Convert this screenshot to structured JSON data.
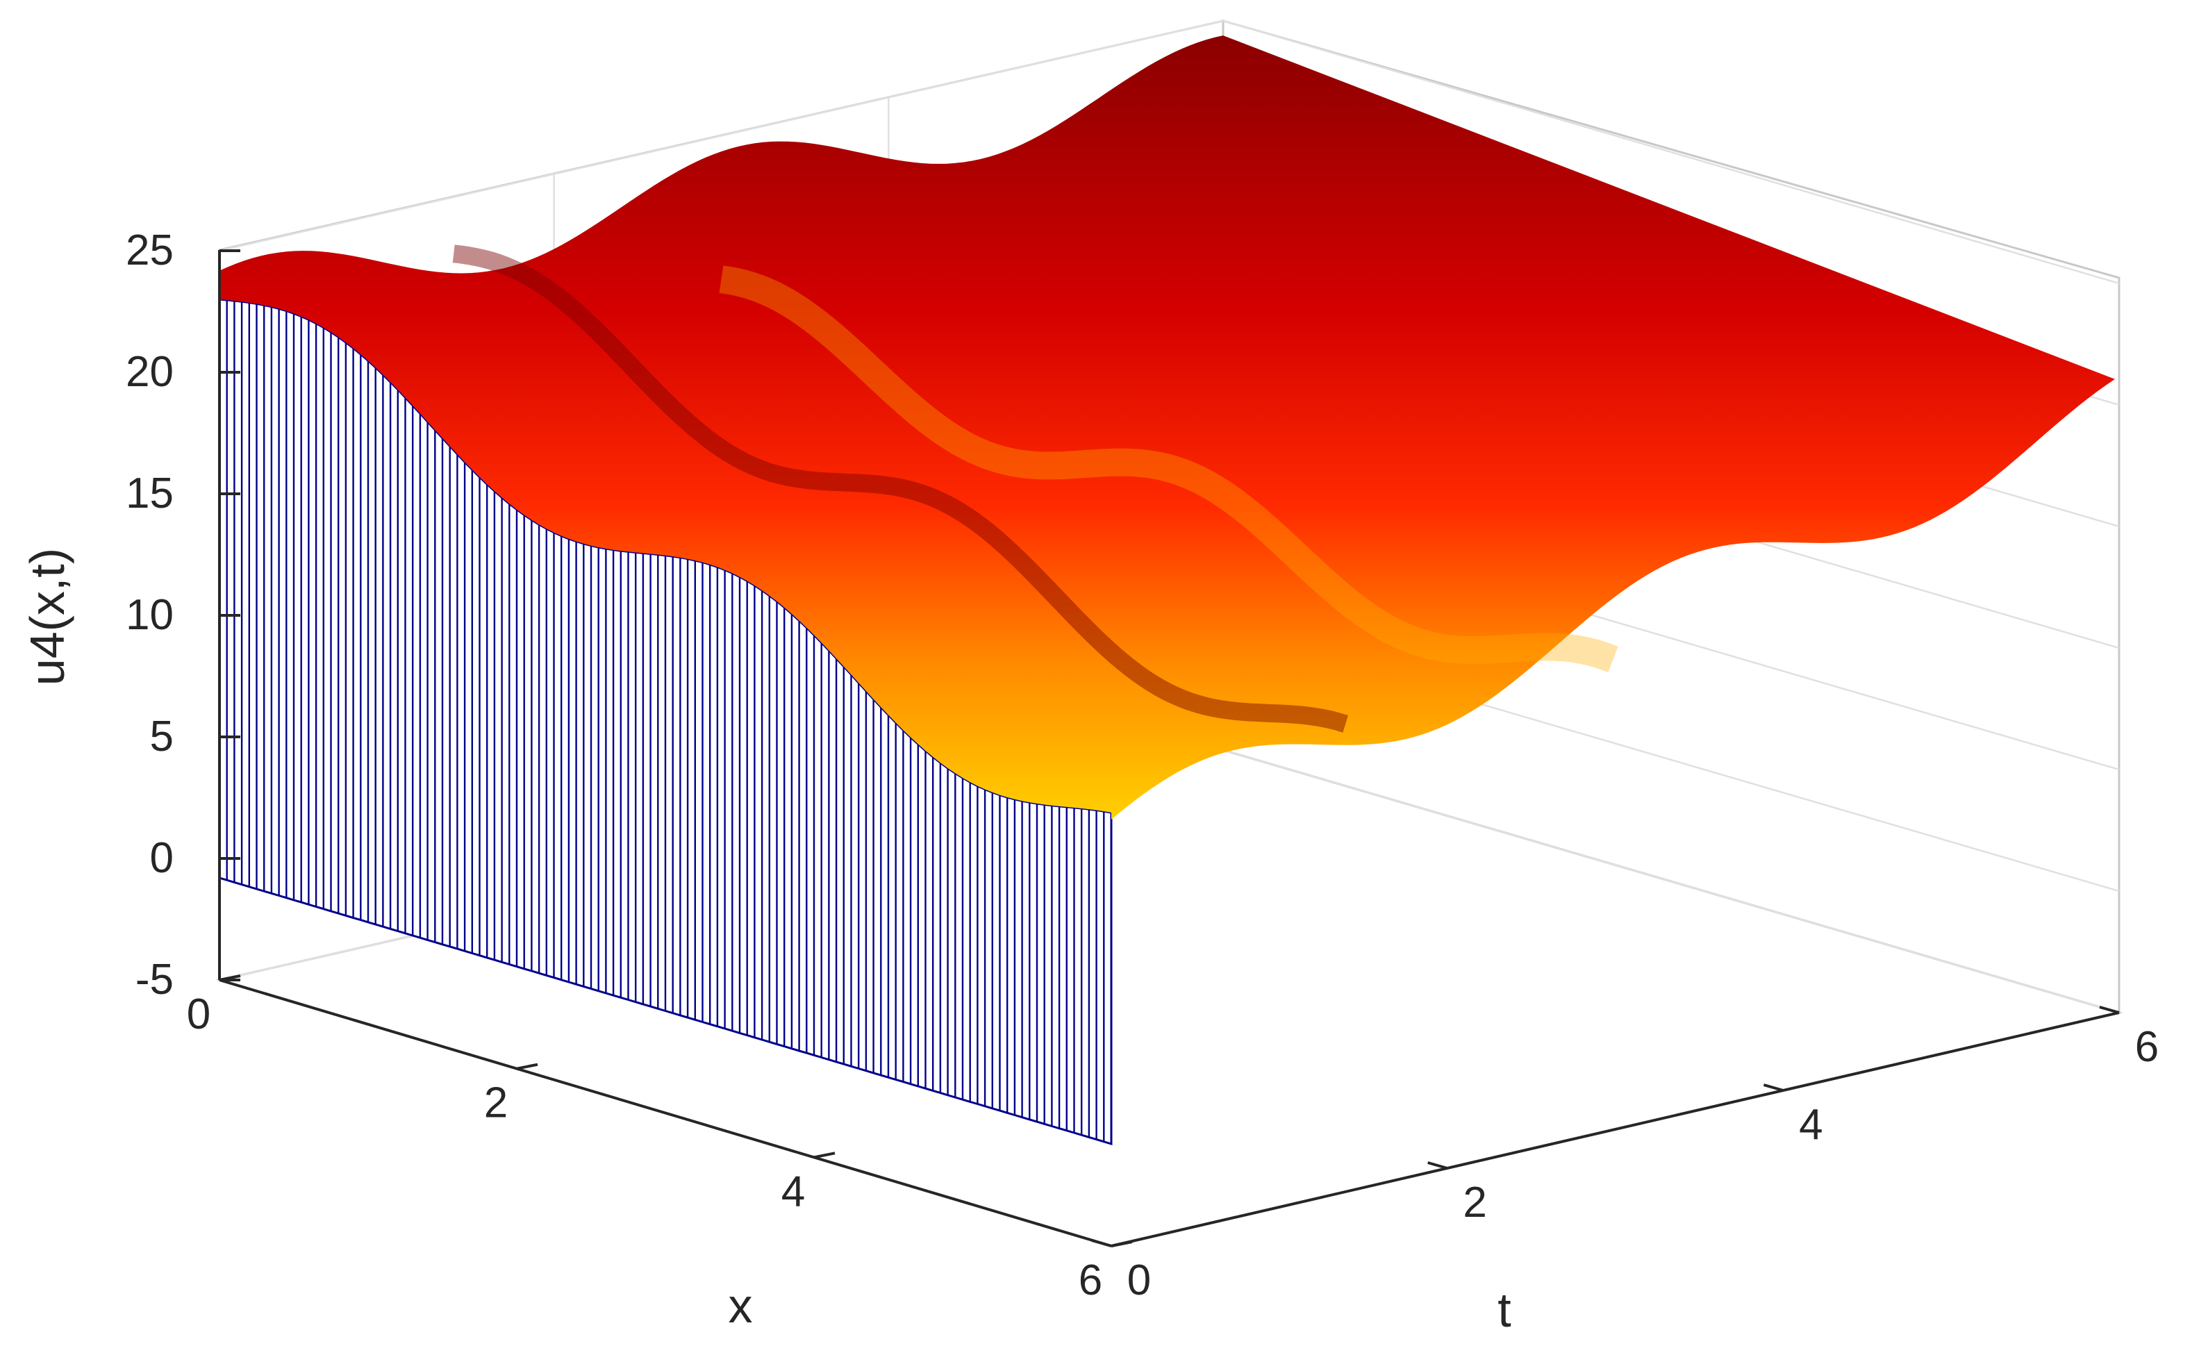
{
  "chart_data": {
    "type": "surface",
    "title": "",
    "xlabel": "x",
    "ylabel": "t",
    "zlabel": "u4(x,t)",
    "xlim": [
      0,
      6
    ],
    "ylim": [
      0,
      6
    ],
    "zlim": [
      -5,
      25
    ],
    "x_ticks": [
      "0",
      "2",
      "4",
      "6"
    ],
    "y_ticks": [
      "0",
      "2",
      "4",
      "6"
    ],
    "z_ticks": [
      "-5",
      "0",
      "5",
      "10",
      "15",
      "20",
      "25"
    ],
    "grid": true,
    "colormap": "hot",
    "edge_color": "#00008b",
    "surface_samples": {
      "x": [
        0,
        1,
        2,
        3,
        4,
        5,
        6
      ],
      "t": [
        0,
        1,
        2,
        3,
        4,
        5,
        6
      ],
      "u": [
        [
          23.0,
          23.6,
          24.0,
          23.6,
          23.0,
          22.6,
          23.0
        ],
        [
          21.0,
          21.8,
          22.5,
          22.0,
          21.0,
          20.5,
          21.0
        ],
        [
          17.0,
          18.0,
          19.0,
          18.5,
          17.6,
          17.0,
          17.5
        ],
        [
          15.0,
          15.5,
          16.0,
          15.5,
          15.0,
          14.5,
          15.0
        ],
        [
          14.5,
          15.2,
          16.0,
          15.5,
          15.0,
          14.6,
          15.0
        ],
        [
          14.0,
          14.5,
          15.0,
          14.7,
          14.2,
          14.0,
          14.3
        ],
        [
          12.0,
          12.5,
          13.0,
          12.8,
          12.3,
          12.0,
          12.3
        ]
      ]
    }
  }
}
